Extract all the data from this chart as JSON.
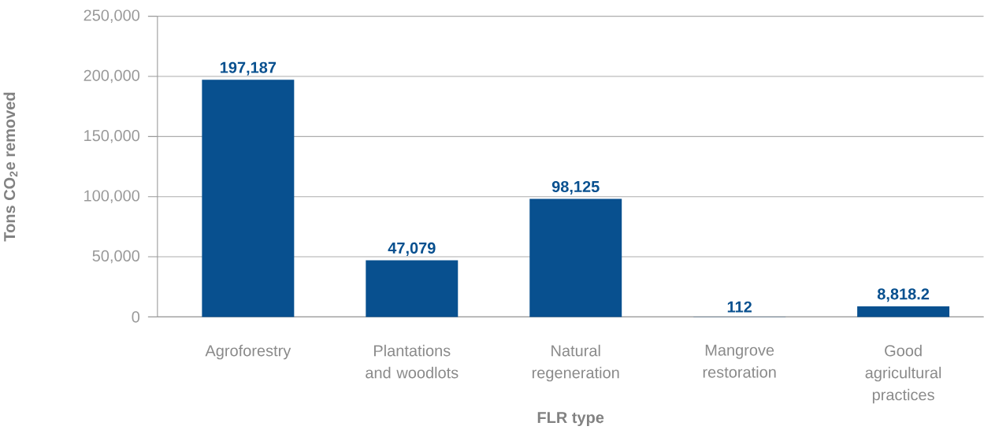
{
  "chart_data": {
    "type": "bar",
    "xlabel": "FLR type",
    "ylabel": "Tons CO$_{2}$e removed",
    "categories": [
      "Agroforestry",
      "Plantations and woodlots",
      "Natural regeneration",
      "Mangrove restoration",
      "Good agricultural practices"
    ],
    "values": [
      197187,
      47079,
      98125,
      112,
      8818.2
    ],
    "value_labels": [
      "197,187",
      "47,079",
      "98,125",
      "112",
      "8,818.2"
    ],
    "color": "#08508f",
    "ylim": [
      0,
      250000
    ],
    "yticks": [
      {
        "value": 0,
        "label": "0"
      },
      {
        "value": 50000,
        "label": "50,000"
      },
      {
        "value": 100000,
        "label": "100,000"
      },
      {
        "value": 150000,
        "label": "150,000"
      },
      {
        "value": 200000,
        "label": "200,000"
      },
      {
        "value": 250000,
        "label": "250,000"
      }
    ],
    "grid": "y"
  }
}
